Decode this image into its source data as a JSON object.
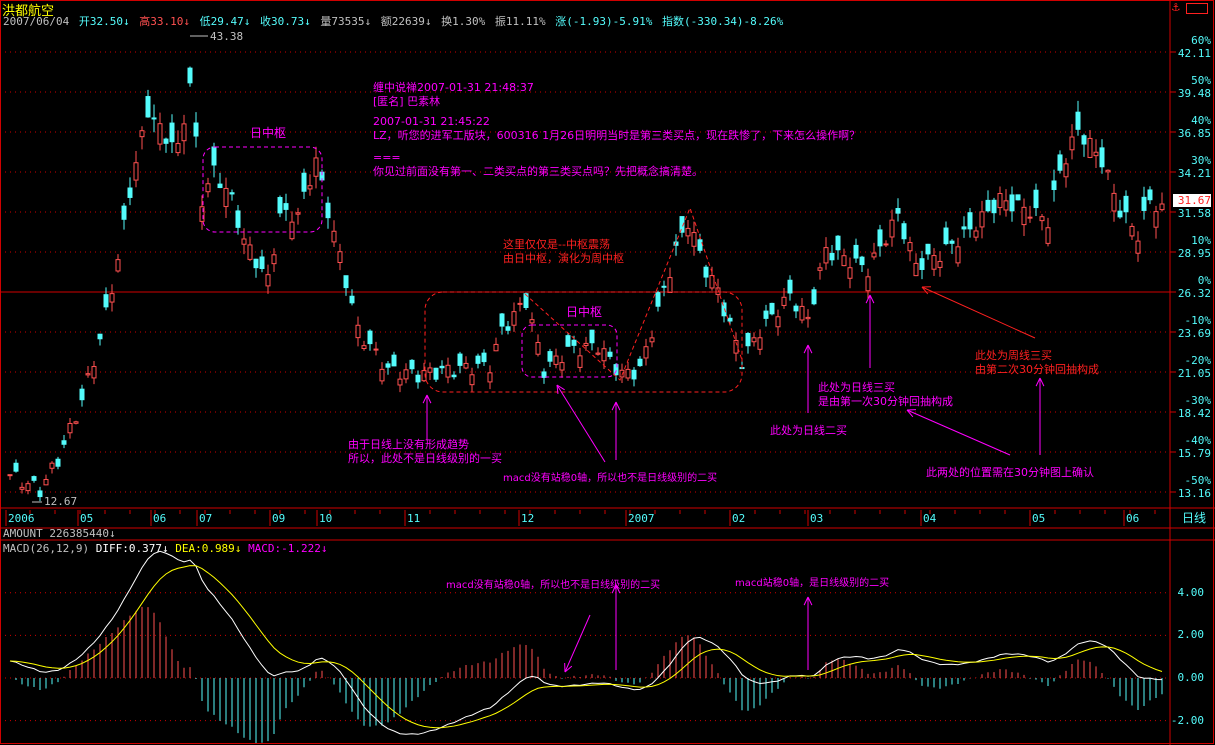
{
  "header": {
    "title": "洪都航空",
    "date": "2007/06/04",
    "open": "开32.50↓",
    "high": "高33.10↓",
    "low": "低29.47↓",
    "close": "收30.73↓",
    "volume": "量73535↓",
    "amount": "额22639↓",
    "turnover": "换1.30%",
    "amplitude": "振11.11%",
    "change": "涨(-1.93)-5.91%",
    "index": "指数(-330.34)-8.26%"
  },
  "price_axis": {
    "percent_labels": [
      "60%",
      "50%",
      "40%",
      "30%",
      "",
      "10%",
      "0%",
      "-10%",
      "-20%",
      "-30%",
      "-40%",
      "-50%"
    ],
    "price_labels": [
      "42.11",
      "39.48",
      "36.85",
      "34.21",
      "31.58",
      "28.95",
      "26.32",
      "23.69",
      "21.05",
      "18.42",
      "15.79",
      "13.16"
    ],
    "last_price": "31.67",
    "period": "日线"
  },
  "date_axis": [
    "2006",
    "05",
    "06",
    "07",
    "09",
    "10",
    "11",
    "12",
    "2007",
    "02",
    "03",
    "04",
    "05",
    "06"
  ],
  "amount_row": "AMOUNT 226385440↓",
  "macd_header": {
    "name": "MACD(26,12,9)",
    "diff": "DIFF:0.377↓",
    "dea": "DEA:0.989↓",
    "macd": "MACD:-1.222↓"
  },
  "macd_axis": [
    "4.00",
    "2.00",
    "0.00",
    "-2.00"
  ],
  "markers": {
    "high": "43.38",
    "low": "12.67"
  },
  "annotations": {
    "comment": [
      "缠中说禅2007-01-31 21:48:37",
      "[匿名] 巴素林",
      "2007-01-31 21:45:22",
      "LZ，听您的进军工版块，600316 1月26日明明当时是第三类买点，现在跌惨了，下来怎么操作啊？",
      "===",
      "你见过前面没有第一、二类买点的第三类买点吗？先把概念搞清楚。"
    ],
    "center1": "日中枢",
    "center2": "日中枢",
    "oscillation": [
      "这里仅仅是--中枢震荡",
      "由日中枢，演化为周中枢"
    ],
    "no_trend": [
      "由于日线上没有形成趋势",
      "所以，此处不是日线级别的一买"
    ],
    "no_second_buy": "macd没有站稳0轴，所以也不是日线级别的二买",
    "daily_second_buy": "此处为日线二买",
    "daily_third_buy": [
      "此处为日线三买",
      "是由第一次30分钟回抽构成"
    ],
    "confirm": "此两处的位置需在30分钟图上确认",
    "weekly_third_buy": [
      "此处为周线三买",
      "由第二次30分钟回抽构成"
    ],
    "macd_no": "macd没有站稳0轴，所以也不是日线级别的二买",
    "macd_yes": "macd站稳0轴，是日线级别的二买"
  },
  "colors": {
    "up": "#ff5050",
    "down": "#54fcfc",
    "grid": "#c00000",
    "diff": "#ffffff",
    "dea": "#ffff00",
    "annotation": "#ff00ff",
    "annotation_red": "#ff2020"
  },
  "chart_data": {
    "type": "candlestick",
    "ylim": [
      13.16,
      42.11
    ],
    "macd_ylim": [
      -2.5,
      6
    ],
    "close_by_trading_day": [
      [
        0,
        14.3
      ],
      [
        5,
        13.3
      ],
      [
        8,
        15.3
      ],
      [
        12,
        19.2
      ],
      [
        15,
        23.2
      ],
      [
        18,
        28.4
      ],
      [
        20,
        33.0
      ],
      [
        23,
        38.3
      ],
      [
        25,
        37
      ],
      [
        28,
        35.7
      ],
      [
        30,
        40
      ],
      [
        32,
        32.4
      ],
      [
        34,
        34.3
      ],
      [
        37,
        32.4
      ],
      [
        39,
        29.7
      ],
      [
        43,
        27.1
      ],
      [
        45,
        31.4
      ],
      [
        48,
        31.4
      ],
      [
        51,
        35
      ],
      [
        53,
        31.7
      ],
      [
        56,
        27.1
      ],
      [
        58,
        23.8
      ],
      [
        63,
        21.2
      ],
      [
        68,
        20.9
      ],
      [
        73,
        21.2
      ],
      [
        80,
        21.5
      ],
      [
        82,
        23.8
      ],
      [
        86,
        25.8
      ],
      [
        89,
        21.2
      ],
      [
        93,
        22.5
      ],
      [
        98,
        22.8
      ],
      [
        102,
        20.9
      ],
      [
        105,
        21.2
      ],
      [
        108,
        25.1
      ],
      [
        111,
        29.1
      ],
      [
        113,
        31
      ],
      [
        116,
        27.8
      ],
      [
        118,
        26.4
      ],
      [
        122,
        21.8
      ],
      [
        125,
        23.8
      ],
      [
        130,
        26.1
      ],
      [
        133,
        24.5
      ],
      [
        136,
        29.1
      ],
      [
        140,
        28.4
      ],
      [
        143,
        27.8
      ],
      [
        148,
        31.4
      ],
      [
        151,
        28.1
      ],
      [
        155,
        28.8
      ],
      [
        160,
        30.4
      ],
      [
        165,
        32.4
      ],
      [
        170,
        31.7
      ],
      [
        173,
        31
      ],
      [
        175,
        34.3
      ],
      [
        178,
        37
      ],
      [
        182,
        35
      ],
      [
        185,
        31.7
      ],
      [
        188,
        30.1
      ],
      [
        190,
        32.4
      ],
      [
        192,
        31.67
      ]
    ]
  }
}
